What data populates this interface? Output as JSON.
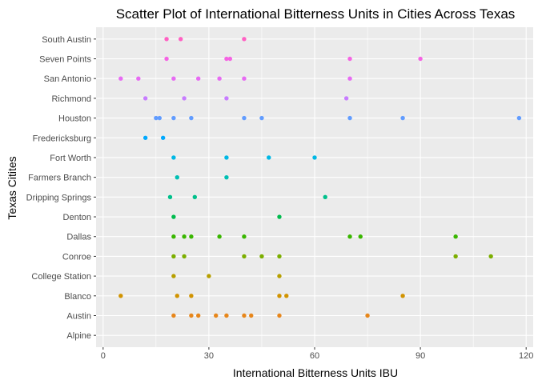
{
  "chart_data": {
    "type": "scatter",
    "title": "Scatter Plot of International Bitterness Units in Cities Across Texas",
    "xlabel": "International Bitterness Units IBU",
    "ylabel": "Texas Citites",
    "xlim": [
      -2,
      122
    ],
    "xticks": [
      0,
      30,
      60,
      90,
      120
    ],
    "grid": true,
    "legend": "none",
    "background_color": "#EBEBEB",
    "categories": [
      "Alpine",
      "Austin",
      "Blanco",
      "College Station",
      "Conroe",
      "Dallas",
      "Denton",
      "Dripping Springs",
      "Farmers Branch",
      "Fort Worth",
      "Fredericksburg",
      "Houston",
      "Richmond",
      "San Antonio",
      "Seven Points",
      "South Austin"
    ],
    "series": [
      {
        "city": "Alpine",
        "color": "#F8766D",
        "values": []
      },
      {
        "city": "Austin",
        "color": "#E7861A",
        "values": [
          20,
          25,
          27,
          32,
          35,
          40,
          42,
          50,
          75
        ]
      },
      {
        "city": "Blanco",
        "color": "#D19300",
        "values": [
          5,
          21,
          25,
          50,
          52,
          85
        ]
      },
      {
        "city": "College Station",
        "color": "#B79F00",
        "values": [
          20,
          30,
          50
        ]
      },
      {
        "city": "Conroe",
        "color": "#7CAE00",
        "values": [
          20,
          23,
          40,
          45,
          50,
          100,
          110
        ]
      },
      {
        "city": "Dallas",
        "color": "#39B600",
        "values": [
          20,
          23,
          25,
          33,
          40,
          70,
          73,
          100
        ]
      },
      {
        "city": "Denton",
        "color": "#00BB4E",
        "values": [
          20,
          50
        ]
      },
      {
        "city": "Dripping Springs",
        "color": "#00C08B",
        "values": [
          19,
          26,
          63
        ]
      },
      {
        "city": "Farmers Branch",
        "color": "#00BFB3",
        "values": [
          21,
          35
        ]
      },
      {
        "city": "Fort Worth",
        "color": "#00B8E5",
        "values": [
          20,
          35,
          47,
          60
        ]
      },
      {
        "city": "Fredericksburg",
        "color": "#00A9FF",
        "values": [
          12,
          17
        ]
      },
      {
        "city": "Houston",
        "color": "#619CFF",
        "values": [
          15,
          16,
          20,
          25,
          40,
          45,
          70,
          85,
          118
        ]
      },
      {
        "city": "Richmond",
        "color": "#C77CFF",
        "values": [
          12,
          23,
          35,
          69
        ]
      },
      {
        "city": "San Antonio",
        "color": "#E76BF3",
        "values": [
          5,
          10,
          20,
          27,
          33,
          40,
          70
        ]
      },
      {
        "city": "Seven Points",
        "color": "#F564E3",
        "values": [
          18,
          35,
          36,
          70,
          90
        ]
      },
      {
        "city": "South Austin",
        "color": "#FF61C3",
        "values": [
          18,
          22,
          40
        ]
      }
    ]
  }
}
